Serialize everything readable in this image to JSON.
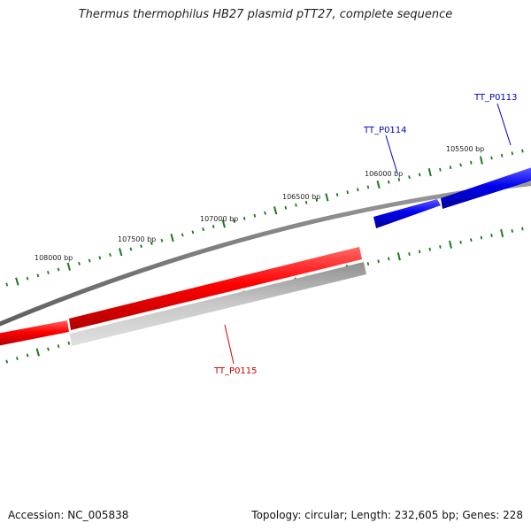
{
  "title": "Thermus thermophilus HB27 plasmid pTT27, complete sequence",
  "footer": {
    "accession": "Accession: NC_005838",
    "summary": "Topology: circular; Length: 232,605 bp; Genes: 228"
  },
  "colors": {
    "backbone": "#808080",
    "forward_gene": "#ff0000",
    "forward_gene_alt": "#0000ff",
    "reverse_gene": "#a0a0a0",
    "tick": "#1a7a1a",
    "forward_label": "#cc0000",
    "alt_label": "#0000cc"
  },
  "ticks": [
    {
      "label": "108000 bp"
    },
    {
      "label": "107500 bp"
    },
    {
      "label": "107000 bp"
    },
    {
      "label": "106500 bp"
    },
    {
      "label": "106000 bp"
    },
    {
      "label": "105500 bp"
    }
  ],
  "genes": [
    {
      "name": "TT_P0113",
      "strand": "forward",
      "color": "#0000ff"
    },
    {
      "name": "TT_P0114",
      "strand": "forward",
      "color": "#0000ff"
    },
    {
      "name": "TT_P0115",
      "strand": "reverse",
      "color": "#ff0000"
    }
  ]
}
